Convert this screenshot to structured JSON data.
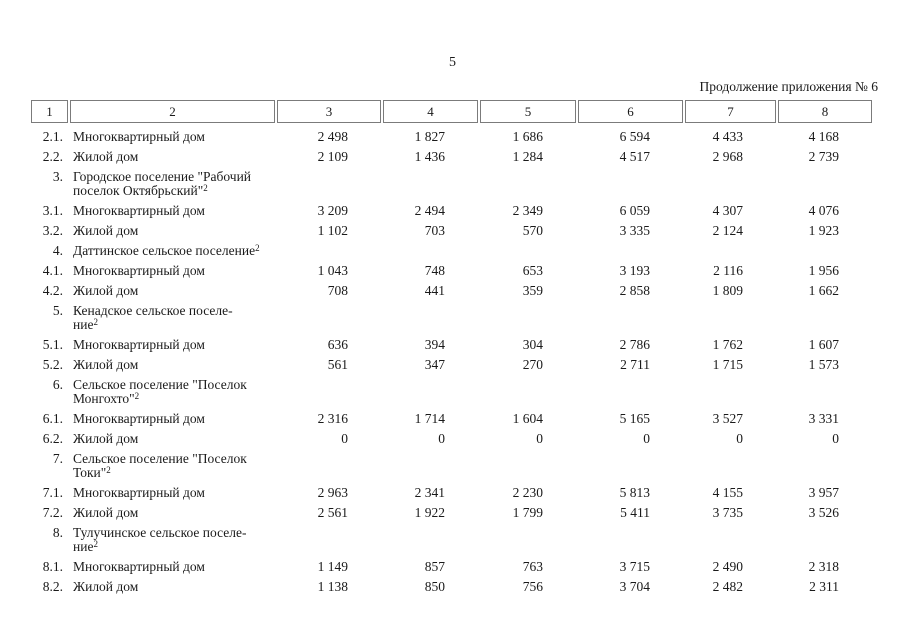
{
  "page": {
    "number": "5",
    "continuation": "Продолжение приложения № 6"
  },
  "table": {
    "columns": [
      "1",
      "2",
      "3",
      "4",
      "5",
      "6",
      "7",
      "8"
    ],
    "rows": [
      {
        "num": "2.1.",
        "name_lines": [
          "Многоквартирный дом"
        ],
        "sup": "",
        "values": [
          "2 498",
          "1 827",
          "1 686",
          "6 594",
          "4 433",
          "4 168"
        ]
      },
      {
        "num": "2.2.",
        "name_lines": [
          "Жилой дом"
        ],
        "sup": "",
        "values": [
          "2 109",
          "1 436",
          "1 284",
          "4 517",
          "2 968",
          "2 739"
        ]
      },
      {
        "num": "3.",
        "name_lines": [
          "Городское поселение \"Рабочий",
          "поселок Октябрьский\""
        ],
        "sup": "2",
        "values": []
      },
      {
        "num": "3.1.",
        "name_lines": [
          "Многоквартирный дом"
        ],
        "sup": "",
        "values": [
          "3 209",
          "2 494",
          "2 349",
          "6 059",
          "4 307",
          "4 076"
        ]
      },
      {
        "num": "3.2.",
        "name_lines": [
          "Жилой дом"
        ],
        "sup": "",
        "values": [
          "1 102",
          "703",
          "570",
          "3 335",
          "2 124",
          "1 923"
        ]
      },
      {
        "num": "4.",
        "name_lines": [
          "Даттинское сельское поселение"
        ],
        "sup": "2",
        "values": []
      },
      {
        "num": "4.1.",
        "name_lines": [
          "Многоквартирный дом"
        ],
        "sup": "",
        "values": [
          "1 043",
          "748",
          "653",
          "3 193",
          "2 116",
          "1 956"
        ]
      },
      {
        "num": "4.2.",
        "name_lines": [
          "Жилой дом"
        ],
        "sup": "",
        "values": [
          "708",
          "441",
          "359",
          "2 858",
          "1 809",
          "1 662"
        ]
      },
      {
        "num": "5.",
        "name_lines": [
          "Кенадское сельское поселе-",
          "ние"
        ],
        "sup": "2",
        "values": []
      },
      {
        "num": "5.1.",
        "name_lines": [
          "Многоквартирный дом"
        ],
        "sup": "",
        "values": [
          "636",
          "394",
          "304",
          "2 786",
          "1 762",
          "1 607"
        ]
      },
      {
        "num": "5.2.",
        "name_lines": [
          "Жилой дом"
        ],
        "sup": "",
        "values": [
          "561",
          "347",
          "270",
          "2 711",
          "1 715",
          "1 573"
        ]
      },
      {
        "num": "6.",
        "name_lines": [
          "Сельское поселение \"Поселок",
          "Монгохто\""
        ],
        "sup": "2",
        "values": []
      },
      {
        "num": "6.1.",
        "name_lines": [
          "Многоквартирный дом"
        ],
        "sup": "",
        "values": [
          "2 316",
          "1 714",
          "1 604",
          "5 165",
          "3 527",
          "3 331"
        ]
      },
      {
        "num": "6.2.",
        "name_lines": [
          "Жилой дом"
        ],
        "sup": "",
        "values": [
          "0",
          "0",
          "0",
          "0",
          "0",
          "0"
        ]
      },
      {
        "num": "7.",
        "name_lines": [
          "Сельское поселение \"Поселок",
          "Токи\""
        ],
        "sup": "2",
        "values": []
      },
      {
        "num": "7.1.",
        "name_lines": [
          "Многоквартирный дом"
        ],
        "sup": "",
        "values": [
          "2 963",
          "2 341",
          "2 230",
          "5 813",
          "4 155",
          "3 957"
        ]
      },
      {
        "num": "7.2.",
        "name_lines": [
          "Жилой дом"
        ],
        "sup": "",
        "values": [
          "2 561",
          "1 922",
          "1 799",
          "5 411",
          "3 735",
          "3 526"
        ]
      },
      {
        "num": "8.",
        "name_lines": [
          "Тулучинское сельское поселе-",
          "ние"
        ],
        "sup": "2",
        "values": []
      },
      {
        "num": "8.1.",
        "name_lines": [
          "Многоквартирный дом"
        ],
        "sup": "",
        "values": [
          "1 149",
          "857",
          "763",
          "3 715",
          "2 490",
          "2 318"
        ]
      },
      {
        "num": "8.2.",
        "name_lines": [
          "Жилой дом"
        ],
        "sup": "",
        "values": [
          "1 138",
          "850",
          "756",
          "3 704",
          "2 482",
          "2 311"
        ]
      }
    ]
  }
}
